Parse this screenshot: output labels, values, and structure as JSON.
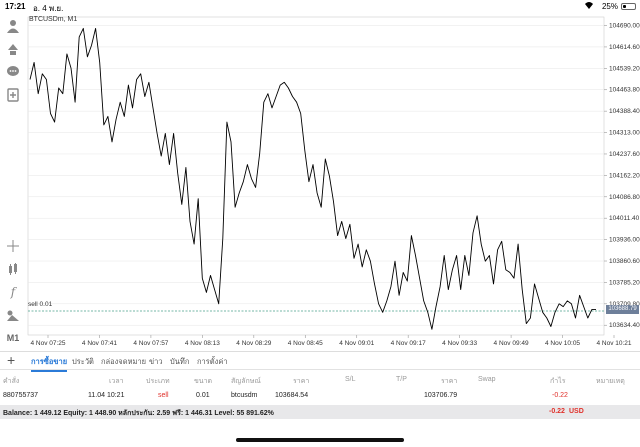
{
  "status_bar": {
    "time": "17:21",
    "date": "อ. 4 พ.ย.",
    "battery_text": "25%",
    "battery_level": 0.25
  },
  "chart": {
    "symbol_label": "BTCUSDm, M1",
    "order_label": "sell 0.01",
    "current_price": "103688.79",
    "colors": {
      "line": "#000000",
      "grid": "#e6e6e6",
      "order_line": "#4aa08a",
      "price_tag": "#6e7f9a"
    }
  },
  "chart_data": {
    "type": "line",
    "symbol": "BTCUSDm",
    "timeframe": "M1",
    "x_ticks": [
      "4 Nov 07:25",
      "4 Nov 07:41",
      "4 Nov 07:57",
      "4 Nov 08:13",
      "4 Nov 08:29",
      "4 Nov 08:45",
      "4 Nov 09:01",
      "4 Nov 09:17",
      "4 Nov 09:33",
      "4 Nov 09:49",
      "4 Nov 10:05",
      "4 Nov 10:21"
    ],
    "y_ticks": [
      "104690.00",
      "104614.60",
      "104539.20",
      "104463.80",
      "104388.40",
      "104313.00",
      "104237.60",
      "104162.20",
      "104086.80",
      "104011.40",
      "103936.00",
      "103860.60",
      "103785.20",
      "103709.80",
      "103634.40"
    ],
    "ylim": [
      103600,
      104720
    ],
    "order_level": 103684.54,
    "grid": true,
    "series": [
      {
        "values": [
          104500,
          104560,
          104450,
          104520,
          104500,
          104380,
          104350,
          104470,
          104450,
          104590,
          104540,
          104420,
          104650,
          104680,
          104580,
          104620,
          104680,
          104560,
          104340,
          104370,
          104280,
          104360,
          104420,
          104370,
          104480,
          104400,
          104500,
          104520,
          104440,
          104490,
          104400,
          104310,
          104230,
          104310,
          104200,
          104310,
          104170,
          104060,
          104190,
          104000,
          103920,
          104080,
          103800,
          103750,
          103810,
          103760,
          103710,
          103940,
          104350,
          104280,
          104050,
          104100,
          104140,
          104200,
          104150,
          104120,
          104240,
          104420,
          104450,
          104400,
          104440,
          104480,
          104490,
          104470,
          104440,
          104420,
          104380,
          104250,
          104140,
          104200,
          104100,
          104050,
          104220,
          104160,
          104070,
          103950,
          104000,
          103940,
          103990,
          103870,
          103920,
          103840,
          103900,
          103860,
          103780,
          103710,
          103680,
          103720,
          103770,
          103860,
          103740,
          103820,
          103790,
          103950,
          103880,
          103800,
          103720,
          103680,
          103620,
          103700,
          103770,
          103880,
          103760,
          103830,
          103880,
          103760,
          103880,
          103810,
          103960,
          104020,
          103920,
          103860,
          103880,
          103780,
          103900,
          103930,
          103830,
          103820,
          103800,
          103920,
          103760,
          103640,
          103660,
          103780,
          103730,
          103680,
          103660,
          103630,
          103680,
          103710,
          103700,
          103720,
          103710,
          103660,
          103740,
          103700,
          103660,
          103690,
          103690
        ]
      }
    ]
  },
  "tabs": [
    "การซื้อขาย",
    "ประวัติ",
    "กล่องจดหมาย",
    "ข่าว",
    "บันทึก",
    "การตั้งค่า"
  ],
  "add_label": "+",
  "trade_table": {
    "headers": [
      "คำสั่ง",
      "เวลา",
      "ประเภท",
      "ขนาด",
      "สัญลักษณ์",
      "ราคา",
      "S/L",
      "T/P",
      "ราคา",
      "Swap",
      "กำไร",
      "หมายเหตุ"
    ],
    "row": {
      "order": "880755737",
      "time": "11.04 10:21",
      "type": "sell",
      "size": "0.01",
      "symbol": "btcusdm",
      "open_price": "103684.54",
      "current_price": "103706.79",
      "profit": "-0.22"
    }
  },
  "balance": {
    "text": "Balance: 1 449.12 Equity: 1 448.90 หลักประกัน: 2.59 ฟรี: 1 446.31 Level: 55 891.62%",
    "profit": "-0.22",
    "currency": "USD"
  }
}
